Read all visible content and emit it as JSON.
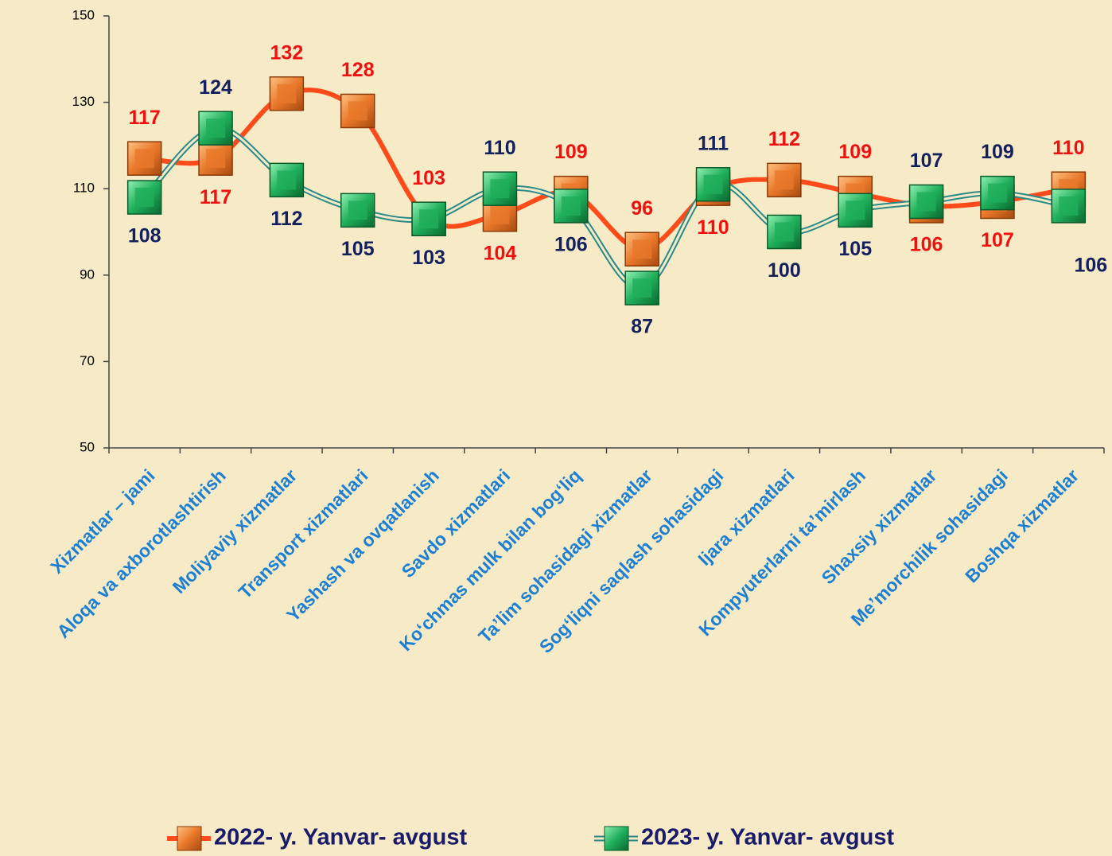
{
  "chart_data": {
    "type": "line",
    "categories": [
      "Xizmatlar – jami",
      "Aloqa va axborotlashtirish",
      "Moliyaviy xizmatlar",
      "Transport xizmatlari",
      "Yashash va ovqatlanish",
      "Savdo xizmatlari",
      "Ko‘chmas mulk bilan bog‘liq",
      "Ta’lim sohasidagi xizmatlar",
      "Sog‘liqni saqlash sohasidagi",
      "Ijara xizmatlari",
      "Kompyuterlarni ta’mirlash",
      "Shaxsiy xizmatlar",
      "Me’morchilik sohasidagi",
      "Boshqa xizmatlar"
    ],
    "series": [
      {
        "name": "2022- y. Yanvar- avgust",
        "color": "#ff4a1a",
        "marker_color": "#e8782a",
        "label_color": "#f01010",
        "values": [
          117,
          117,
          132,
          128,
          103,
          104,
          109,
          96,
          110,
          112,
          109,
          106,
          107,
          110
        ]
      },
      {
        "name": "2023- y. Yanvar- avgust",
        "color": "#2a8a8a",
        "marker_color": "#1fae5a",
        "label_color": "#14205e",
        "values": [
          108,
          124,
          112,
          105,
          103,
          110,
          106,
          87,
          111,
          100,
          105,
          107,
          109,
          106
        ]
      }
    ],
    "ylim": [
      50,
      150
    ],
    "yticks": [
      50,
      70,
      90,
      110,
      130,
      150
    ],
    "legend": "bottom"
  }
}
